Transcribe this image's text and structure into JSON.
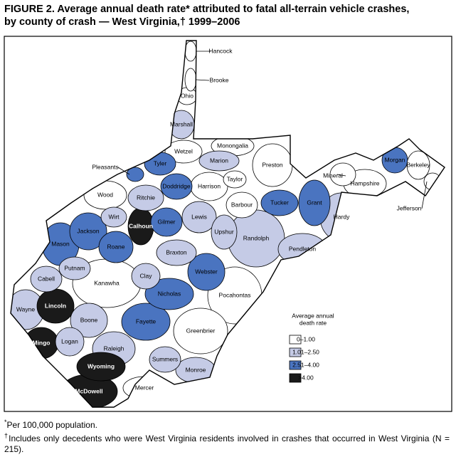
{
  "title_lines": [
    "FIGURE 2. Average annual death rate* attributed to fatal all-terrain vehicle crashes,",
    "by county of crash — West Virginia,† 1999–2006"
  ],
  "legend": {
    "title_lines": [
      "Average annual",
      "death rate"
    ],
    "items": [
      {
        "label": "0–1.00",
        "color": "#ffffff"
      },
      {
        "label": "1.01–2.50",
        "color": "#c5cbe6"
      },
      {
        "label": "2.51–4.00",
        "color": "#4a74c0"
      },
      {
        "label": ">4.00",
        "color": "#1a1a1a"
      }
    ]
  },
  "counties": [
    {
      "name": "Hancock",
      "bin": 0
    },
    {
      "name": "Brooke",
      "bin": 0
    },
    {
      "name": "Ohio",
      "bin": 0
    },
    {
      "name": "Marshall",
      "bin": 1
    },
    {
      "name": "Wetzel",
      "bin": 0
    },
    {
      "name": "Monongalia",
      "bin": 0
    },
    {
      "name": "Preston",
      "bin": 0
    },
    {
      "name": "Marion",
      "bin": 1
    },
    {
      "name": "Taylor",
      "bin": 0
    },
    {
      "name": "Tyler",
      "bin": 2
    },
    {
      "name": "Pleasants",
      "bin": 2
    },
    {
      "name": "Doddridge",
      "bin": 2
    },
    {
      "name": "Harrison",
      "bin": 0
    },
    {
      "name": "Wood",
      "bin": 0
    },
    {
      "name": "Ritchie",
      "bin": 1
    },
    {
      "name": "Wirt",
      "bin": 1
    },
    {
      "name": "Calhoun",
      "bin": 3
    },
    {
      "name": "Gilmer",
      "bin": 2
    },
    {
      "name": "Lewis",
      "bin": 1
    },
    {
      "name": "Barbour",
      "bin": 0
    },
    {
      "name": "Tucker",
      "bin": 2
    },
    {
      "name": "Grant",
      "bin": 2
    },
    {
      "name": "Mineral",
      "bin": 0
    },
    {
      "name": "Hampshire",
      "bin": 0
    },
    {
      "name": "Morgan",
      "bin": 2
    },
    {
      "name": "Berkeley",
      "bin": 0
    },
    {
      "name": "Jefferson",
      "bin": 0
    },
    {
      "name": "Hardy",
      "bin": 1
    },
    {
      "name": "Jackson",
      "bin": 2
    },
    {
      "name": "Mason",
      "bin": 2
    },
    {
      "name": "Roane",
      "bin": 2
    },
    {
      "name": "Upshur",
      "bin": 1
    },
    {
      "name": "Randolph",
      "bin": 1
    },
    {
      "name": "Pendleton",
      "bin": 1
    },
    {
      "name": "Braxton",
      "bin": 1
    },
    {
      "name": "Webster",
      "bin": 2
    },
    {
      "name": "Clay",
      "bin": 1
    },
    {
      "name": "Putnam",
      "bin": 1
    },
    {
      "name": "Cabell",
      "bin": 1
    },
    {
      "name": "Kanawha",
      "bin": 0
    },
    {
      "name": "Nicholas",
      "bin": 2
    },
    {
      "name": "Pocahontas",
      "bin": 0
    },
    {
      "name": "Wayne",
      "bin": 1
    },
    {
      "name": "Lincoln",
      "bin": 3
    },
    {
      "name": "Boone",
      "bin": 1
    },
    {
      "name": "Fayette",
      "bin": 2
    },
    {
      "name": "Greenbrier",
      "bin": 0
    },
    {
      "name": "Mingo",
      "bin": 3
    },
    {
      "name": "Logan",
      "bin": 1
    },
    {
      "name": "Raleigh",
      "bin": 1
    },
    {
      "name": "Wyoming",
      "bin": 3
    },
    {
      "name": "Summers",
      "bin": 1
    },
    {
      "name": "Monroe",
      "bin": 1
    },
    {
      "name": "McDowell",
      "bin": 3
    },
    {
      "name": "Mercer",
      "bin": 0
    }
  ],
  "footnotes": [
    {
      "mark": "*",
      "text": "Per 100,000 population."
    },
    {
      "mark": "†",
      "text": "Includes only decedents who were West Virginia residents involved in crashes that occurred in West Virginia (N = 215)."
    }
  ]
}
